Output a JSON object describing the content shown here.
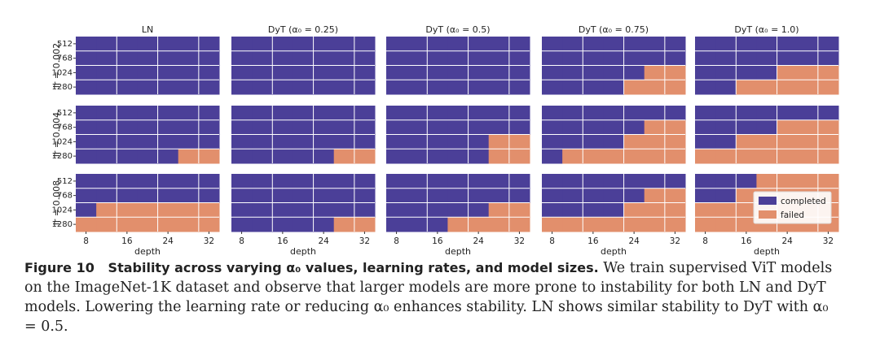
{
  "chart_data": {
    "type": "heatmap",
    "columns": [
      "LN",
      "DyT (α₀ = 0.25)",
      "DyT (α₀ = 0.5)",
      "DyT (α₀ = 0.75)",
      "DyT (α₀ = 1.0)"
    ],
    "rows": [
      "lr = 0.002",
      "lr = 0.004",
      "lr = 0.008"
    ],
    "x_categories": [
      "8",
      "12",
      "16",
      "20",
      "24",
      "28",
      "32"
    ],
    "x_tick_labels": [
      "8",
      "16",
      "24",
      "32"
    ],
    "y_categories": [
      "512",
      "768",
      "1024",
      "1280"
    ],
    "xlabel": "depth",
    "legend": [
      {
        "key": "completed",
        "label": "completed",
        "color": "#4b3f98"
      },
      {
        "key": "failed",
        "label": "failed",
        "color": "#e28f6c"
      }
    ],
    "legend_position": "bottom-right",
    "encoding": "1 = failed, 0 = completed; grid[row][column][width][depth]",
    "grid": [
      [
        [
          [
            0,
            0,
            0,
            0,
            0,
            0,
            0
          ],
          [
            0,
            0,
            0,
            0,
            0,
            0,
            0
          ],
          [
            0,
            0,
            0,
            0,
            0,
            0,
            0
          ],
          [
            0,
            0,
            0,
            0,
            0,
            0,
            0
          ]
        ],
        [
          [
            0,
            0,
            0,
            0,
            0,
            0,
            0
          ],
          [
            0,
            0,
            0,
            0,
            0,
            0,
            0
          ],
          [
            0,
            0,
            0,
            0,
            0,
            0,
            0
          ],
          [
            0,
            0,
            0,
            0,
            0,
            0,
            0
          ]
        ],
        [
          [
            0,
            0,
            0,
            0,
            0,
            0,
            0
          ],
          [
            0,
            0,
            0,
            0,
            0,
            0,
            0
          ],
          [
            0,
            0,
            0,
            0,
            0,
            0,
            0
          ],
          [
            0,
            0,
            0,
            0,
            0,
            0,
            0
          ]
        ],
        [
          [
            0,
            0,
            0,
            0,
            0,
            0,
            0
          ],
          [
            0,
            0,
            0,
            0,
            0,
            0,
            0
          ],
          [
            0,
            0,
            0,
            0,
            0,
            1,
            1
          ],
          [
            0,
            0,
            0,
            0,
            1,
            1,
            1
          ]
        ],
        [
          [
            0,
            0,
            0,
            0,
            0,
            0,
            0
          ],
          [
            0,
            0,
            0,
            0,
            0,
            0,
            0
          ],
          [
            0,
            0,
            0,
            0,
            1,
            1,
            1
          ],
          [
            0,
            0,
            1,
            1,
            1,
            1,
            1
          ]
        ]
      ],
      [
        [
          [
            0,
            0,
            0,
            0,
            0,
            0,
            0
          ],
          [
            0,
            0,
            0,
            0,
            0,
            0,
            0
          ],
          [
            0,
            0,
            0,
            0,
            0,
            0,
            0
          ],
          [
            0,
            0,
            0,
            0,
            0,
            1,
            1
          ]
        ],
        [
          [
            0,
            0,
            0,
            0,
            0,
            0,
            0
          ],
          [
            0,
            0,
            0,
            0,
            0,
            0,
            0
          ],
          [
            0,
            0,
            0,
            0,
            0,
            0,
            0
          ],
          [
            0,
            0,
            0,
            0,
            0,
            1,
            1
          ]
        ],
        [
          [
            0,
            0,
            0,
            0,
            0,
            0,
            0
          ],
          [
            0,
            0,
            0,
            0,
            0,
            0,
            0
          ],
          [
            0,
            0,
            0,
            0,
            0,
            1,
            1
          ],
          [
            0,
            0,
            0,
            0,
            0,
            1,
            1
          ]
        ],
        [
          [
            0,
            0,
            0,
            0,
            0,
            0,
            0
          ],
          [
            0,
            0,
            0,
            0,
            0,
            1,
            1
          ],
          [
            0,
            0,
            0,
            0,
            1,
            1,
            1
          ],
          [
            0,
            1,
            1,
            1,
            1,
            1,
            1
          ]
        ],
        [
          [
            0,
            0,
            0,
            0,
            0,
            0,
            0
          ],
          [
            0,
            0,
            0,
            0,
            1,
            1,
            1
          ],
          [
            0,
            0,
            1,
            1,
            1,
            1,
            1
          ],
          [
            1,
            1,
            1,
            1,
            1,
            1,
            1
          ]
        ]
      ],
      [
        [
          [
            0,
            0,
            0,
            0,
            0,
            0,
            0
          ],
          [
            0,
            0,
            0,
            0,
            0,
            0,
            0
          ],
          [
            0,
            1,
            1,
            1,
            1,
            1,
            1
          ],
          [
            1,
            1,
            1,
            1,
            1,
            1,
            1
          ]
        ],
        [
          [
            0,
            0,
            0,
            0,
            0,
            0,
            0
          ],
          [
            0,
            0,
            0,
            0,
            0,
            0,
            0
          ],
          [
            0,
            0,
            0,
            0,
            0,
            0,
            0
          ],
          [
            0,
            0,
            0,
            0,
            0,
            1,
            1
          ]
        ],
        [
          [
            0,
            0,
            0,
            0,
            0,
            0,
            0
          ],
          [
            0,
            0,
            0,
            0,
            0,
            0,
            0
          ],
          [
            0,
            0,
            0,
            0,
            0,
            1,
            1
          ],
          [
            0,
            0,
            0,
            1,
            1,
            1,
            1
          ]
        ],
        [
          [
            0,
            0,
            0,
            0,
            0,
            0,
            0
          ],
          [
            0,
            0,
            0,
            0,
            0,
            1,
            1
          ],
          [
            0,
            0,
            0,
            0,
            1,
            1,
            1
          ],
          [
            1,
            1,
            1,
            1,
            1,
            1,
            1
          ]
        ],
        [
          [
            0,
            0,
            0,
            1,
            1,
            1,
            1
          ],
          [
            0,
            0,
            1,
            1,
            1,
            1,
            1
          ],
          [
            1,
            1,
            1,
            1,
            1,
            1,
            1
          ],
          [
            1,
            1,
            1,
            1,
            1,
            1,
            1
          ]
        ]
      ]
    ]
  },
  "caption": {
    "label": "Figure 10",
    "title": "Stability across varying α₀ values, learning rates, and model sizes.",
    "body": "We train supervised ViT models on the ImageNet-1K dataset and observe that larger models are more prone to instability for both LN and DyT models. Lowering the learning rate or reducing α₀ enhances stability. LN shows similar stability to DyT with α₀ = 0.5."
  }
}
